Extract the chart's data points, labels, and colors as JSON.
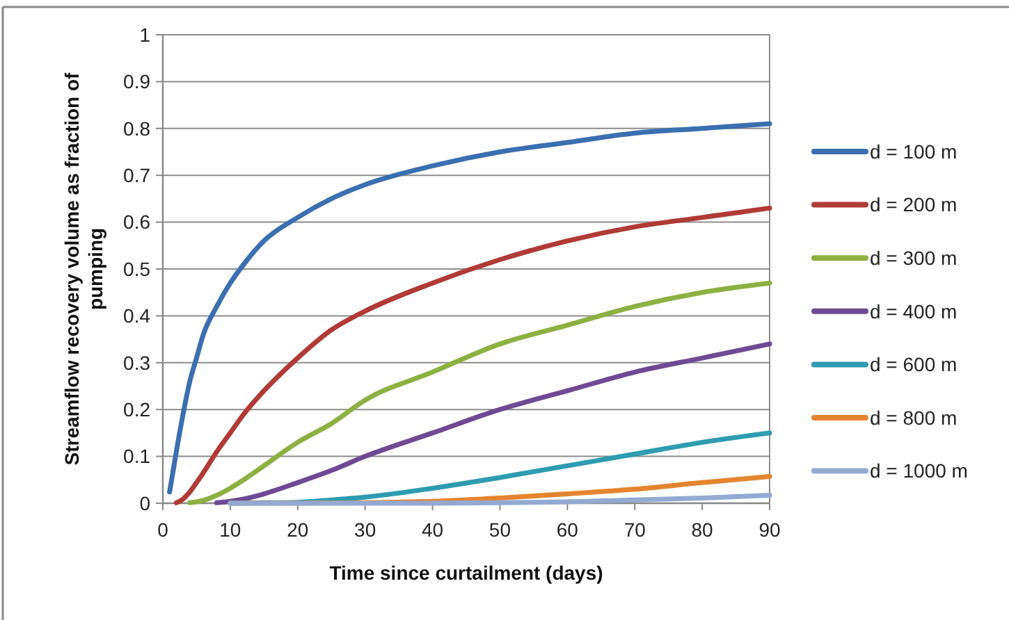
{
  "chart_data": {
    "type": "line",
    "xlabel": "Time since curtailment (days)",
    "ylabel": "Streamflow recovery volume as fraction of pumping",
    "xlim": [
      0,
      90
    ],
    "xticks": [
      0,
      10,
      20,
      30,
      40,
      50,
      60,
      70,
      80,
      90
    ],
    "ylim": [
      0,
      1
    ],
    "yticks": [
      0,
      0.1,
      0.2,
      0.3,
      0.4,
      0.5,
      0.6,
      0.7,
      0.8,
      0.9,
      1
    ],
    "grid": "y",
    "legend": "right",
    "marker": "none",
    "line_style": "solid",
    "series": [
      {
        "name": "d = 100 m",
        "color": "#3a6fb0",
        "x": [
          1,
          2,
          3,
          4,
          5,
          6,
          8,
          10,
          12,
          15,
          20,
          25,
          30,
          40,
          50,
          60,
          70,
          80,
          90
        ],
        "values": [
          0.024,
          0.11,
          0.19,
          0.26,
          0.31,
          0.36,
          0.42,
          0.47,
          0.51,
          0.56,
          0.61,
          0.65,
          0.68,
          0.72,
          0.75,
          0.77,
          0.79,
          0.8,
          0.81
        ]
      },
      {
        "name": "d = 200 m",
        "color": "#b03a35",
        "x": [
          2,
          3,
          4,
          5,
          6,
          8,
          10,
          12,
          15,
          20,
          25,
          30,
          40,
          50,
          60,
          70,
          80,
          90
        ],
        "values": [
          0.001,
          0.009,
          0.024,
          0.044,
          0.065,
          0.11,
          0.15,
          0.19,
          0.24,
          0.31,
          0.37,
          0.41,
          0.47,
          0.52,
          0.56,
          0.59,
          0.61,
          0.63
        ]
      },
      {
        "name": "d = 300 m",
        "color": "#8db043",
        "x": [
          4,
          6,
          8,
          10,
          12,
          15,
          20,
          25,
          30,
          40,
          50,
          60,
          70,
          80,
          90
        ],
        "values": [
          0.001,
          0.006,
          0.017,
          0.032,
          0.05,
          0.08,
          0.13,
          0.17,
          0.22,
          0.28,
          0.34,
          0.38,
          0.42,
          0.45,
          0.47
        ]
      },
      {
        "name": "d = 400 m",
        "color": "#6e4a94",
        "x": [
          8,
          10,
          12,
          15,
          20,
          25,
          30,
          40,
          50,
          60,
          70,
          80,
          90
        ],
        "values": [
          0.001,
          0.004,
          0.009,
          0.02,
          0.044,
          0.07,
          0.1,
          0.15,
          0.2,
          0.24,
          0.28,
          0.31,
          0.34
        ]
      },
      {
        "name": "d = 600 m",
        "color": "#2e9bb0",
        "x": [
          10,
          15,
          20,
          25,
          30,
          40,
          50,
          60,
          70,
          80,
          90
        ],
        "values": [
          0,
          0.001,
          0.002,
          0.007,
          0.013,
          0.032,
          0.055,
          0.08,
          0.105,
          0.13,
          0.15
        ]
      },
      {
        "name": "d = 800 m",
        "color": "#e58430",
        "x": [
          10,
          30,
          40,
          50,
          60,
          70,
          80,
          90
        ],
        "values": [
          0,
          0.001,
          0.004,
          0.011,
          0.02,
          0.03,
          0.044,
          0.057
        ]
      },
      {
        "name": "d = 1000 m",
        "color": "#93a9d2",
        "x": [
          10,
          40,
          50,
          60,
          70,
          80,
          90
        ],
        "values": [
          0,
          0,
          0.001,
          0.003,
          0.007,
          0.011,
          0.017
        ]
      }
    ]
  }
}
